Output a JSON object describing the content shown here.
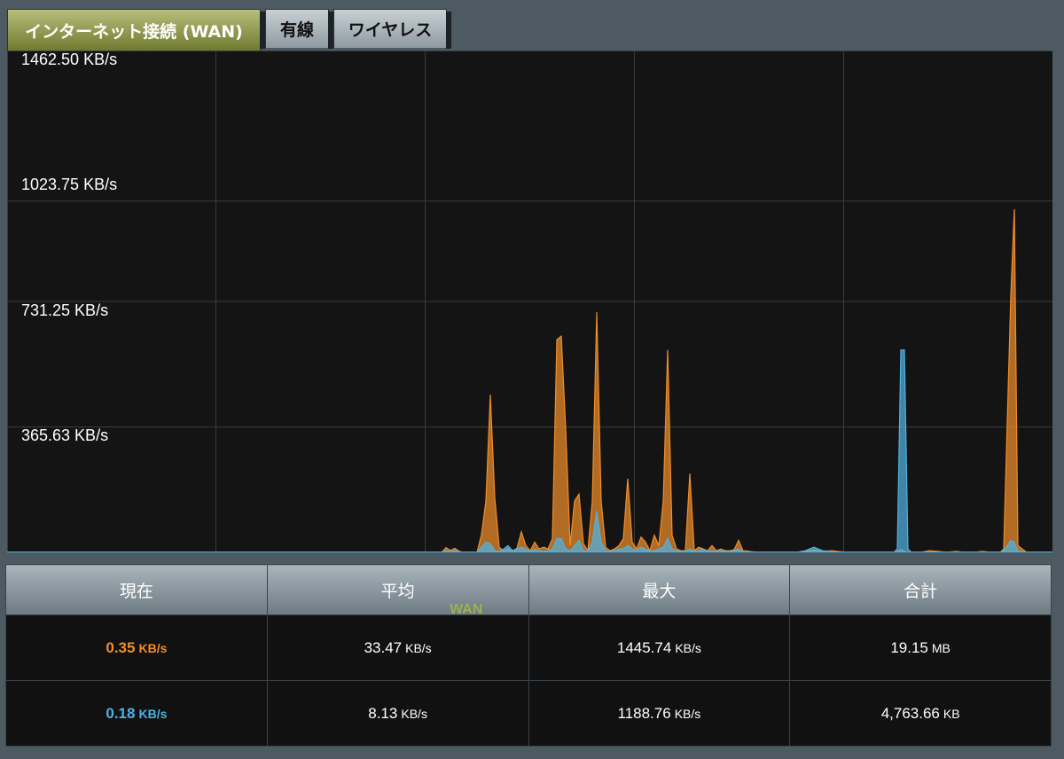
{
  "tabs": [
    {
      "label": "インターネット接続 (WAN)",
      "active": true
    },
    {
      "label": "有線",
      "active": false
    },
    {
      "label": "ワイヤレス",
      "active": false
    }
  ],
  "chart_data": {
    "type": "area",
    "ylim": [
      0,
      1462.5
    ],
    "yticks": [
      {
        "value": 1462.5,
        "label": "1462.50 KB/s"
      },
      {
        "value": 1023.75,
        "label": "1023.75 KB/s"
      },
      {
        "value": 731.25,
        "label": "731.25 KB/s"
      },
      {
        "value": 365.63,
        "label": "365.63 KB/s"
      }
    ],
    "grid": true,
    "x": [
      0,
      10,
      20,
      30,
      40,
      50,
      60,
      70,
      80,
      90,
      100,
      110,
      120,
      130,
      140,
      150,
      160,
      170,
      180,
      190,
      200,
      210,
      220,
      230,
      240,
      250,
      260,
      270,
      280,
      290,
      300,
      310,
      320,
      330,
      340,
      350,
      360,
      370,
      380,
      390,
      400,
      410,
      420,
      430,
      440,
      450,
      460,
      470,
      480,
      490,
      495,
      500,
      505,
      510,
      515,
      520,
      525,
      530,
      535,
      540,
      545,
      550,
      555,
      560,
      565,
      570,
      575,
      580,
      585,
      590,
      595,
      600,
      605,
      610,
      615,
      620,
      625,
      630,
      635,
      640,
      645,
      650,
      655,
      660,
      665,
      670,
      675,
      680,
      685,
      690,
      695,
      700,
      705,
      710,
      715,
      720,
      725,
      730,
      735,
      740,
      745,
      750,
      755,
      760,
      765,
      770,
      775,
      780,
      785,
      790,
      795,
      800,
      805,
      810,
      815,
      820,
      825,
      830,
      835,
      840,
      850,
      860,
      870,
      880,
      890,
      900,
      910,
      920,
      930,
      940,
      950,
      960,
      970,
      980,
      990,
      1000,
      1004,
      1008,
      1012,
      1016,
      1020,
      1030,
      1040,
      1050,
      1060,
      1070,
      1080,
      1090,
      1100,
      1110,
      1115,
      1120,
      1124,
      1128,
      1132,
      1136,
      1140,
      1150,
      1160,
      1170,
      1179
    ],
    "series": [
      {
        "color": "#f08d2a",
        "values": [
          0,
          0,
          0,
          0,
          0,
          0,
          0,
          0,
          0,
          0,
          0,
          0,
          0,
          0,
          0,
          0,
          0,
          0,
          0,
          0,
          0,
          0,
          0,
          0,
          0,
          0,
          0,
          0,
          0,
          0,
          0,
          0,
          0,
          0,
          0,
          0,
          0,
          0,
          0,
          0,
          0,
          0,
          0,
          0,
          0,
          0,
          0,
          0,
          0,
          0,
          14,
          6,
          12,
          3,
          0,
          0,
          0,
          0,
          52,
          150,
          460,
          160,
          15,
          5,
          12,
          5,
          12,
          60,
          20,
          5,
          30,
          10,
          15,
          10,
          40,
          620,
          630,
          360,
          20,
          150,
          170,
          25,
          5,
          150,
          700,
          150,
          15,
          5,
          10,
          20,
          40,
          215,
          30,
          10,
          45,
          30,
          5,
          50,
          20,
          150,
          590,
          50,
          10,
          5,
          5,
          230,
          5,
          15,
          10,
          5,
          20,
          5,
          10,
          5,
          5,
          8,
          35,
          5,
          4,
          2,
          0,
          0,
          0,
          0,
          0,
          3,
          8,
          3,
          5,
          2,
          0,
          0,
          0,
          0,
          0,
          0,
          3,
          8,
          3,
          0,
          0,
          0,
          5,
          3,
          0,
          3,
          0,
          0,
          3,
          0,
          0,
          0,
          10,
          380,
          750,
          1000,
          20,
          0,
          0,
          0,
          0
        ]
      },
      {
        "color": "#4fb1e2",
        "values": [
          0,
          0,
          0,
          0,
          0,
          0,
          0,
          0,
          0,
          0,
          0,
          0,
          0,
          0,
          0,
          0,
          0,
          0,
          0,
          0,
          0,
          0,
          0,
          0,
          0,
          0,
          0,
          0,
          0,
          0,
          0,
          0,
          0,
          0,
          0,
          0,
          0,
          0,
          0,
          0,
          0,
          0,
          0,
          0,
          0,
          0,
          0,
          0,
          0,
          0,
          5,
          3,
          5,
          2,
          0,
          0,
          0,
          0,
          15,
          30,
          25,
          5,
          3,
          10,
          20,
          5,
          10,
          15,
          10,
          2,
          10,
          5,
          3,
          5,
          10,
          40,
          40,
          10,
          5,
          20,
          35,
          5,
          3,
          30,
          120,
          30,
          5,
          3,
          5,
          10,
          10,
          20,
          10,
          5,
          15,
          10,
          3,
          5,
          10,
          15,
          40,
          10,
          5,
          3,
          3,
          10,
          3,
          5,
          10,
          3,
          5,
          3,
          5,
          3,
          3,
          5,
          10,
          3,
          2,
          1,
          0,
          0,
          0,
          0,
          0,
          5,
          15,
          5,
          2,
          0,
          0,
          0,
          0,
          0,
          0,
          0,
          10,
          590,
          590,
          10,
          0,
          0,
          0,
          0,
          0,
          0,
          0,
          0,
          0,
          0,
          0,
          0,
          5,
          20,
          35,
          30,
          5,
          0,
          0,
          0,
          0
        ]
      }
    ]
  },
  "table": {
    "headers": [
      "現在",
      "平均",
      "最大",
      "合計"
    ],
    "wan_label": "WAN",
    "rows": [
      {
        "style": "orange",
        "cells": [
          {
            "value": "0.35",
            "unit": "KB/s"
          },
          {
            "value": "33.47",
            "unit": "KB/s"
          },
          {
            "value": "1445.74",
            "unit": "KB/s"
          },
          {
            "value": "19.15",
            "unit": "MB"
          }
        ]
      },
      {
        "style": "blue",
        "cells": [
          {
            "value": "0.18",
            "unit": "KB/s"
          },
          {
            "value": "8.13",
            "unit": "KB/s"
          },
          {
            "value": "1188.76",
            "unit": "KB/s"
          },
          {
            "value": "4,763.66",
            "unit": "KB"
          }
        ]
      }
    ]
  }
}
